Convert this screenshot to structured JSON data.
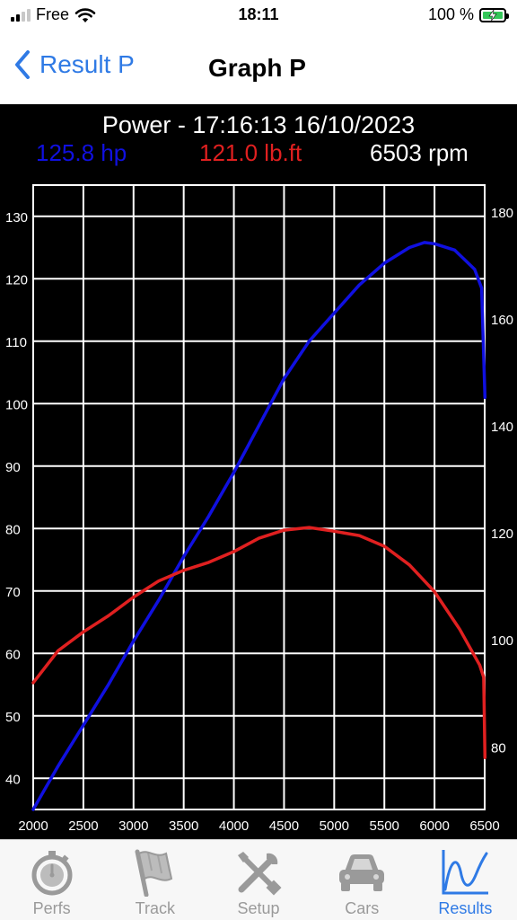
{
  "status_bar": {
    "carrier": "Free",
    "time": "18:11",
    "battery": "100 %",
    "icons": [
      "signal-icon",
      "wifi-icon",
      "battery-charging-icon"
    ]
  },
  "nav": {
    "back_label": "Result P",
    "title": "Graph P"
  },
  "graph": {
    "header": "Power - 17:16:13 16/10/2023",
    "readout_power": "125.8 hp",
    "readout_torque": "121.0 lb.ft",
    "readout_rpm": "6503 rpm",
    "colors": {
      "power": "#1010e0",
      "torque": "#e02020",
      "grid": "#ffffff",
      "background": "#000000"
    }
  },
  "chart_data": {
    "type": "line",
    "title": "Power - 17:16:13 16/10/2023",
    "xlim": [
      2000,
      6500
    ],
    "x_ticks": [
      2000,
      2500,
      3000,
      3500,
      4000,
      4500,
      5000,
      5500,
      6000,
      6500
    ],
    "y_left_ticks": [
      40,
      50,
      60,
      70,
      80,
      90,
      100,
      110,
      120,
      130
    ],
    "y_left_lim": [
      35,
      135
    ],
    "y_right_ticks": [
      80,
      100,
      120,
      140,
      160,
      180
    ],
    "y_right_lim": [
      68.3,
      185
    ],
    "grid": true,
    "series": [
      {
        "name": "125.8 hp",
        "axis": "left",
        "x": [
          2000,
          2250,
          2500,
          2750,
          3000,
          3250,
          3500,
          3750,
          4000,
          4250,
          4500,
          4750,
          5000,
          5250,
          5500,
          5750,
          5900,
          6000,
          6200,
          6400,
          6470,
          6503
        ],
        "y": [
          35,
          42,
          48.5,
          55,
          62,
          68.5,
          75.5,
          82,
          89,
          96.5,
          104,
          110,
          114.5,
          119,
          122.5,
          125,
          125.8,
          125.6,
          124.6,
          121.5,
          118.5,
          101
        ]
      },
      {
        "name": "121.0 lb.ft",
        "axis": "right",
        "x": [
          2000,
          2250,
          2500,
          2750,
          3000,
          3250,
          3500,
          3750,
          4000,
          4250,
          4500,
          4750,
          5000,
          5250,
          5500,
          5750,
          6000,
          6250,
          6450,
          6490,
          6503
        ],
        "y": [
          92,
          98,
          101.5,
          104.5,
          108,
          111,
          113,
          114.5,
          116.5,
          119,
          120.5,
          121,
          120.3,
          119.5,
          117.5,
          114,
          109,
          102,
          95.3,
          93,
          78
        ]
      }
    ]
  },
  "tabs": [
    {
      "label": "Perfs",
      "icon": "stopwatch-icon",
      "active": false
    },
    {
      "label": "Track",
      "icon": "flag-icon",
      "active": false
    },
    {
      "label": "Setup",
      "icon": "tools-icon",
      "active": false
    },
    {
      "label": "Cars",
      "icon": "car-icon",
      "active": false
    },
    {
      "label": "Results",
      "icon": "graph-icon",
      "active": true
    }
  ]
}
